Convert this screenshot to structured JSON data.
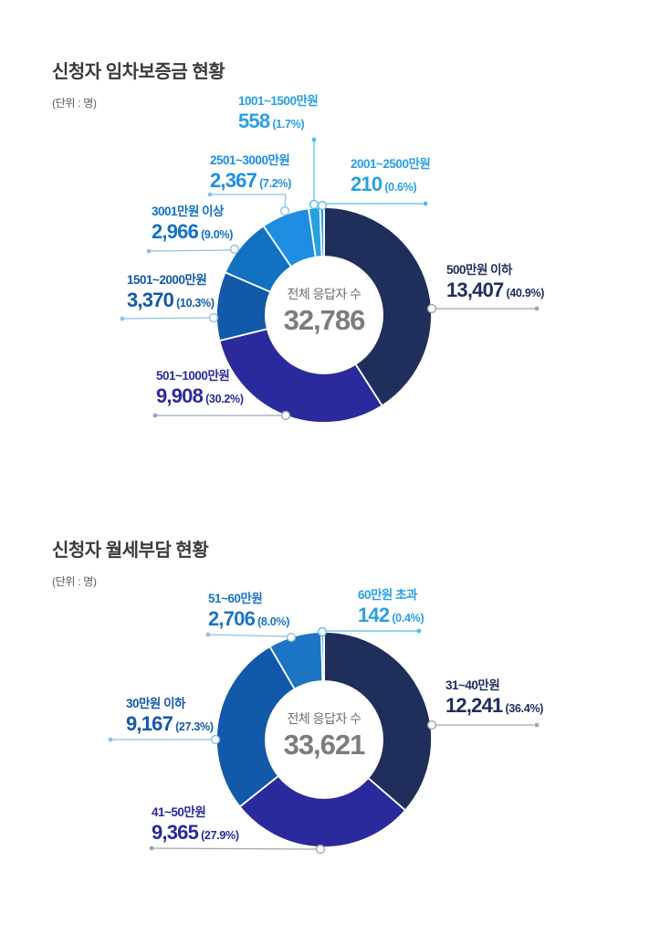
{
  "page": {
    "background": "#ffffff"
  },
  "chart_data": [
    {
      "type": "pie",
      "subtype": "donut",
      "title": "신청자 임차보증금 현황",
      "unit": "(단위 : 명)",
      "center_label": "전체 응답자 수",
      "total": 32786,
      "total_display": "32,786",
      "legend_position": "around",
      "segments": [
        {
          "label": "500만원 이하",
          "value": 13407,
          "num": "13,407",
          "pct": 40.9,
          "pct_display": "(40.9%)",
          "color": "#202e5c"
        },
        {
          "label": "501~1000만원",
          "value": 9908,
          "num": "9,908",
          "pct": 30.2,
          "pct_display": "(30.2%)",
          "color": "#2a2a9c"
        },
        {
          "label": "1501~2000만원",
          "value": 3370,
          "num": "3,370",
          "pct": 10.3,
          "pct_display": "(10.3%)",
          "color": "#1259a9"
        },
        {
          "label": "3001만원 이상",
          "value": 2966,
          "num": "2,966",
          "pct": 9.0,
          "pct_display": "(9.0%)",
          "color": "#1172c2"
        },
        {
          "label": "2501~3000만원",
          "value": 2367,
          "num": "2,367",
          "pct": 7.2,
          "pct_display": "(7.2%)",
          "color": "#1e8de2"
        },
        {
          "label": "1001~1500만원",
          "value": 558,
          "num": "558",
          "pct": 1.7,
          "pct_display": "(1.7%)",
          "color": "#29a0e0"
        },
        {
          "label": "2001~2500만원",
          "value": 210,
          "num": "210",
          "pct": 0.6,
          "pct_display": "(0.6%)",
          "color": "#29a0e0"
        }
      ]
    },
    {
      "type": "pie",
      "subtype": "donut",
      "title": "신청자 월세부담 현황",
      "unit": "(단위 : 명)",
      "center_label": "전체 응답자 수",
      "total": 33621,
      "total_display": "33,621",
      "legend_position": "around",
      "segments": [
        {
          "label": "31~40만원",
          "value": 12241,
          "num": "12,241",
          "pct": 36.4,
          "pct_display": "(36.4%)",
          "color": "#202e5c"
        },
        {
          "label": "41~50만원",
          "value": 9365,
          "num": "9,365",
          "pct": 27.9,
          "pct_display": "(27.9%)",
          "color": "#2a2a9c"
        },
        {
          "label": "30만원 이하",
          "value": 9167,
          "num": "9,167",
          "pct": 27.3,
          "pct_display": "(27.3%)",
          "color": "#1259a9"
        },
        {
          "label": "51~60만원",
          "value": 2706,
          "num": "2,706",
          "pct": 8.0,
          "pct_display": "(8.0%)",
          "color": "#1b74c4"
        },
        {
          "label": "60만원 초과",
          "value": 142,
          "num": "142",
          "pct": 0.4,
          "pct_display": "(0.4%)",
          "color": "#29a0e0"
        }
      ]
    }
  ]
}
